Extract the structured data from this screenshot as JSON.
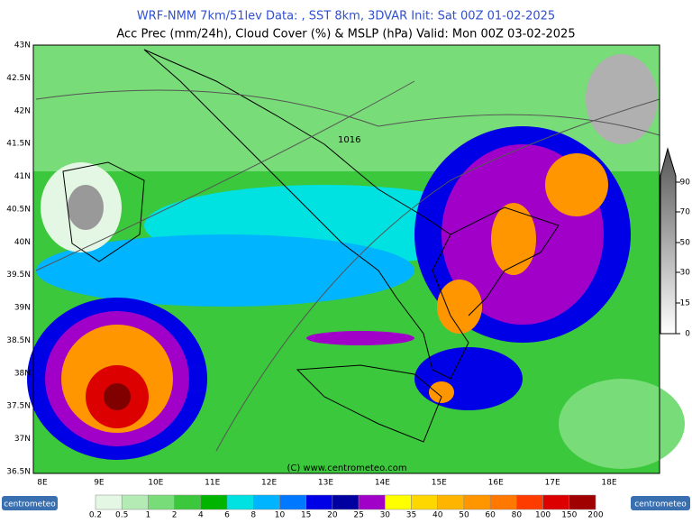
{
  "header": {
    "line1": "WRF-NMM 7km/51lev  Data: , SST 8km, 3DVAR  Init: Sat 00Z 01-02-2025",
    "line2": "Acc Prec (mm/24h), Cloud Cover (%) & MSLP (hPa)  Valid: Mon 00Z 03-02-2025"
  },
  "map": {
    "lat_labels": [
      "43N",
      "42.5N",
      "42N",
      "41.5N",
      "41N",
      "40.5N",
      "40N",
      "39.5N",
      "39N",
      "38.5N",
      "38N",
      "37.5N",
      "37N",
      "36.5N"
    ],
    "lon_labels": [
      "8E",
      "9E",
      "10E",
      "11E",
      "12E",
      "13E",
      "14E",
      "15E",
      "16E",
      "17E",
      "18E"
    ],
    "isobar_label": "1016",
    "copyright": "(C) www.centrometeo.com"
  },
  "cloud_scale": {
    "labels": [
      "90",
      "70",
      "50",
      "30",
      "15",
      "0"
    ]
  },
  "precip_scale": {
    "labels": [
      "0.2",
      "0.5",
      "1",
      "2",
      "4",
      "6",
      "8",
      "10",
      "15",
      "20",
      "25",
      "30",
      "35",
      "40",
      "50",
      "60",
      "80",
      "100",
      "150",
      "200"
    ],
    "colors": [
      "#e4f7e4",
      "#b4ebb4",
      "#78dc78",
      "#3cc83c",
      "#00b400",
      "#00e1e1",
      "#00b4ff",
      "#0078ff",
      "#0000e6",
      "#0000a0",
      "#a000c8",
      "#ffff00",
      "#ffd700",
      "#ffb400",
      "#ff9600",
      "#ff7800",
      "#ff3c00",
      "#dc0000",
      "#a00000"
    ]
  },
  "logos": [
    "centrometeo",
    "centrometeo"
  ]
}
